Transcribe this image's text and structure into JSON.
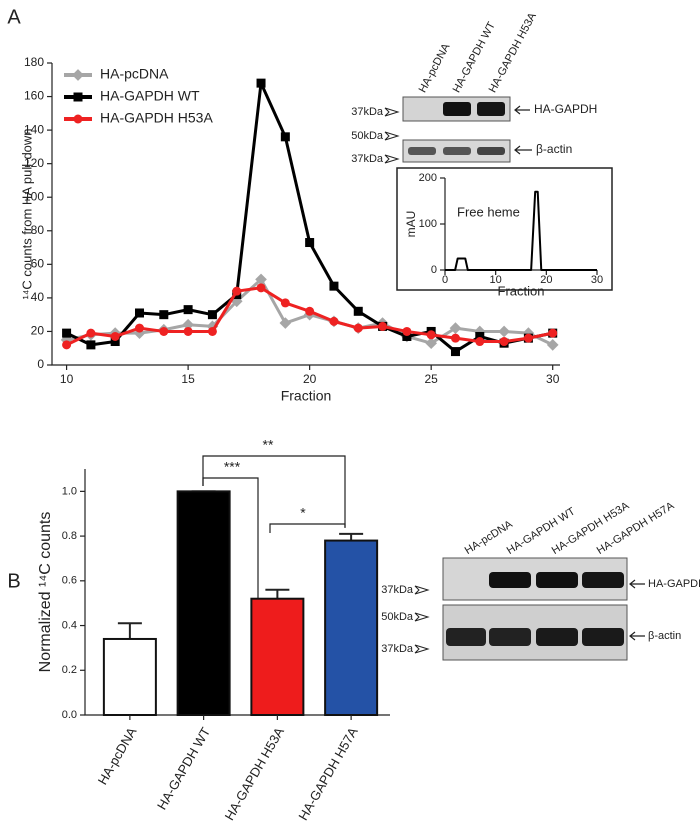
{
  "figure": {
    "panel_labels": [
      "A",
      "B"
    ]
  },
  "blot_a": {
    "lanes": [
      "HA-pcDNA",
      "HA-GAPDH WT",
      "HA-GAPDH H53A"
    ],
    "markers": [
      "37kDa",
      "50kDa",
      "37kDa"
    ],
    "bands": [
      "HA-GAPDH",
      "β-actin"
    ]
  },
  "blot_b": {
    "lanes": [
      "HA-pcDNA",
      "HA-GAPDH WT",
      "HA-GAPDH H53A",
      "HA-GAPDH H57A"
    ],
    "markers": [
      "37kDa",
      "50kDa",
      "37kDa"
    ],
    "bands": [
      "HA-GAPDH",
      "β-actin"
    ]
  },
  "chart_data": [
    {
      "type": "line",
      "xlabel": "Fraction",
      "ylabel": "¹⁴C counts from HA pull-down",
      "x": [
        10,
        11,
        12,
        13,
        14,
        15,
        16,
        17,
        18,
        19,
        20,
        21,
        22,
        23,
        24,
        25,
        26,
        27,
        28,
        29,
        30
      ],
      "xlim": [
        9.4,
        30.3
      ],
      "xticks": [
        10,
        15,
        20,
        25,
        30
      ],
      "ylim": [
        0,
        180
      ],
      "yticks": [
        0,
        20,
        40,
        60,
        80,
        100,
        120,
        140,
        160,
        180
      ],
      "legend": "upper left",
      "series": [
        {
          "name": "HA-pcDNA",
          "color": "#a6a6a6",
          "marker": "diamond",
          "values": [
            15,
            18,
            19,
            19,
            21,
            24,
            23,
            38,
            51,
            25,
            30,
            26,
            22,
            25,
            17,
            13,
            22,
            20,
            20,
            19,
            12
          ]
        },
        {
          "name": "HA-GAPDH WT",
          "color": "#000000",
          "marker": "square",
          "values": [
            19,
            12,
            14,
            31,
            30,
            33,
            30,
            42,
            168,
            136,
            73,
            47,
            32,
            23,
            17,
            20,
            8,
            17,
            13,
            16,
            19
          ]
        },
        {
          "name": "HA-GAPDH H53A",
          "color": "#ee2222",
          "marker": "circle",
          "values": [
            12,
            19,
            17,
            22,
            20,
            20,
            20,
            44,
            46,
            37,
            32,
            26,
            22,
            23,
            20,
            18,
            16,
            14,
            14,
            16,
            19
          ]
        }
      ]
    },
    {
      "type": "line",
      "xlabel": "Fraction",
      "ylabel": "mAU",
      "annotation": "Free heme",
      "x": [
        0,
        2,
        2.5,
        4,
        4.5,
        17,
        17.8,
        18.3,
        19,
        30
      ],
      "xlim": [
        0,
        30
      ],
      "xticks": [
        0,
        10,
        20,
        30
      ],
      "ylim": [
        0,
        200
      ],
      "yticks": [
        0,
        100,
        200
      ],
      "series": [
        {
          "color": "#000000",
          "values": [
            0,
            0,
            25,
            25,
            0,
            0,
            170,
            170,
            0,
            0
          ]
        }
      ]
    },
    {
      "type": "bar",
      "ylabel": "Normalized ¹⁴C counts",
      "categories": [
        "HA-pcDNA",
        "HA-GAPDH WT",
        "HA-GAPDH H53A",
        "HA-GAPDH H57A"
      ],
      "values": [
        0.34,
        1.0,
        0.52,
        0.78
      ],
      "errors": [
        0.07,
        0,
        0.04,
        0.03
      ],
      "colors": [
        "#ffffff",
        "#000000",
        "#ee1c1c",
        "#2452a6"
      ],
      "ylim": [
        0,
        1.1
      ],
      "yticks": [
        {
          "value": 0,
          "label": "0.0"
        },
        {
          "value": 0.2,
          "label": "0.2"
        },
        {
          "value": 0.4,
          "label": "0.4"
        },
        {
          "value": 0.6,
          "label": "0.6"
        },
        {
          "value": 0.8,
          "label": "0.8"
        },
        {
          "value": 1,
          "label": "1.0"
        }
      ],
      "annotations": [
        "***",
        "**",
        "*"
      ]
    }
  ]
}
